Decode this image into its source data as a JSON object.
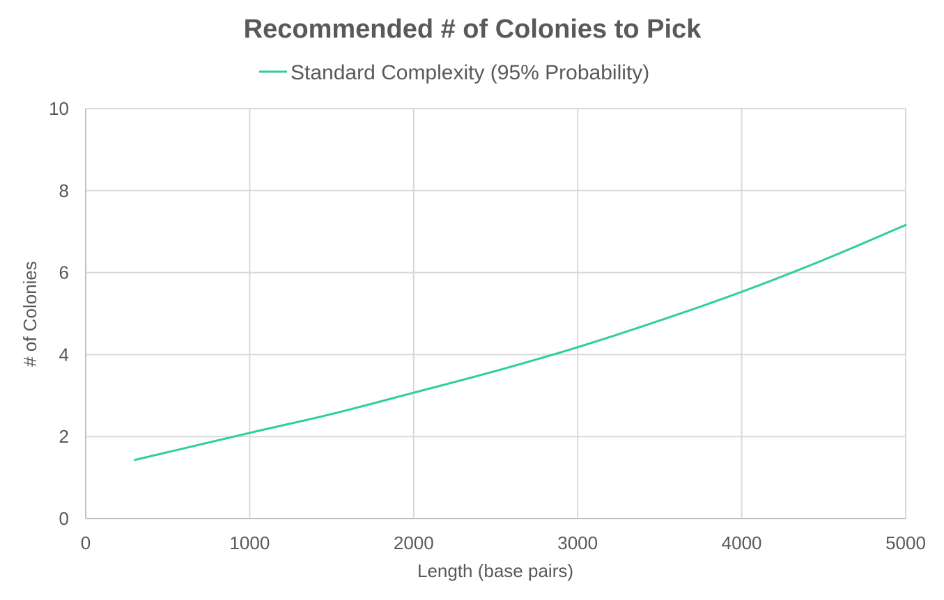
{
  "chart_data": {
    "type": "line",
    "title": "Recommended # of Colonies to Pick",
    "xlabel": "Length (base pairs)",
    "ylabel": "# of Colonies",
    "xlim": [
      0,
      5000
    ],
    "ylim": [
      0,
      10
    ],
    "xticks": [
      0,
      1000,
      2000,
      3000,
      4000,
      5000
    ],
    "yticks": [
      0,
      2,
      4,
      6,
      8,
      10
    ],
    "grid": true,
    "legend_position": "top",
    "series": [
      {
        "name": "Standard Complexity (95% Probability)",
        "color": "#2ecf9a",
        "x": [
          300,
          1000,
          1500,
          2000,
          2500,
          3000,
          3500,
          4000,
          4500,
          5000
        ],
        "y": [
          1.43,
          2.09,
          2.55,
          3.07,
          3.6,
          4.18,
          4.83,
          5.53,
          6.31,
          7.16
        ]
      }
    ]
  }
}
